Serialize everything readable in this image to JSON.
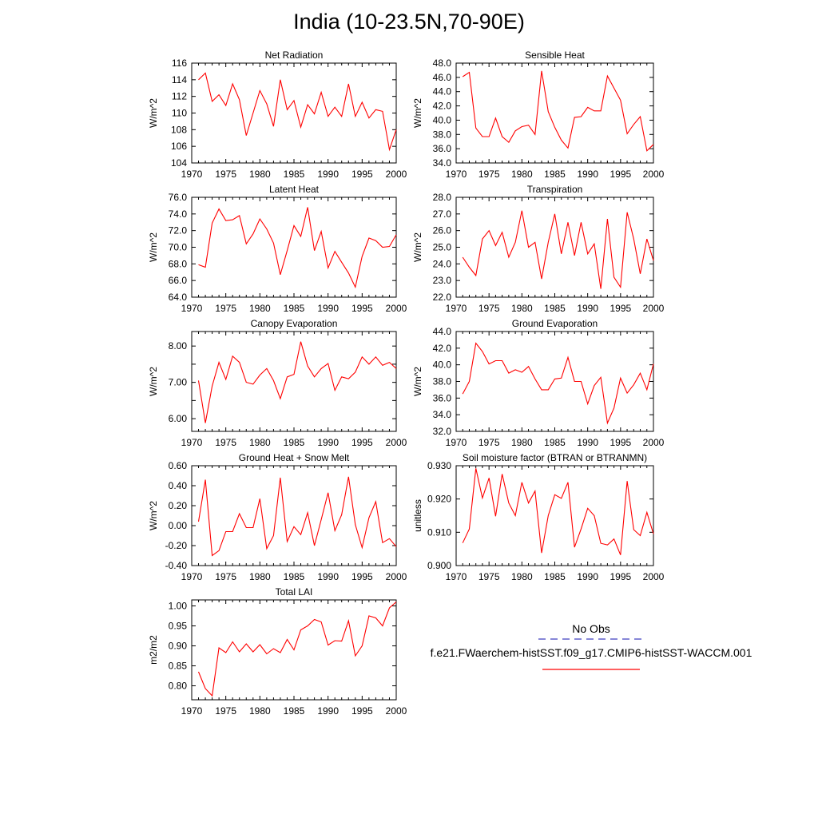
{
  "page": {
    "title": "India (10-23.5N,70-90E)"
  },
  "legend": {
    "obs_label": "No Obs",
    "obs_color": "#3f3fbf",
    "model_label": "f.e21.FWaerchem-histSST.f09_g17.CMIP6-histSST-WACCM.001",
    "model_color": "#ff0000"
  },
  "chart_data": [
    {
      "type": "line",
      "title": "Net Radiation",
      "ylabel": "W/m^2",
      "xlim": [
        1970,
        2000
      ],
      "ylim": [
        104,
        116
      ],
      "decimals": 0,
      "yticks": [
        104,
        106,
        108,
        110,
        112,
        114,
        116
      ],
      "xticks": [
        1970,
        1975,
        1980,
        1985,
        1990,
        1995,
        2000
      ],
      "series": [
        {
          "color": "#ff0000",
          "x": [
            1971,
            1972,
            1973,
            1974,
            1975,
            1976,
            1977,
            1978,
            1979,
            1980,
            1981,
            1982,
            1983,
            1984,
            1985,
            1986,
            1987,
            1988,
            1989,
            1990,
            1991,
            1992,
            1993,
            1994,
            1995,
            1996,
            1997,
            1998,
            1999,
            2000
          ],
          "values": [
            114.0,
            114.8,
            111.4,
            112.2,
            110.9,
            113.5,
            111.6,
            107.3,
            110.0,
            112.7,
            111.1,
            108.4,
            114.0,
            110.4,
            111.5,
            108.3,
            111.0,
            109.9,
            112.5,
            109.6,
            110.7,
            109.6,
            113.5,
            109.6,
            111.3,
            109.4,
            110.4,
            110.2,
            105.6,
            108.0
          ]
        }
      ]
    },
    {
      "type": "line",
      "title": "Sensible Heat",
      "ylabel": "W/m^2",
      "xlim": [
        1970,
        2000
      ],
      "ylim": [
        34,
        48
      ],
      "decimals": 1,
      "yticks": [
        34,
        36,
        38,
        40,
        42,
        44,
        46,
        48
      ],
      "xticks": [
        1970,
        1975,
        1980,
        1985,
        1990,
        1995,
        2000
      ],
      "series": [
        {
          "color": "#ff0000",
          "x": [
            1971,
            1972,
            1973,
            1974,
            1975,
            1976,
            1977,
            1978,
            1979,
            1980,
            1981,
            1982,
            1983,
            1984,
            1985,
            1986,
            1987,
            1988,
            1989,
            1990,
            1991,
            1992,
            1993,
            1994,
            1995,
            1996,
            1997,
            1998,
            1999,
            2000
          ],
          "values": [
            46.1,
            46.7,
            38.9,
            37.7,
            37.7,
            40.3,
            37.7,
            36.9,
            38.5,
            39.1,
            39.3,
            38.0,
            46.9,
            41.2,
            39.0,
            37.2,
            36.1,
            40.4,
            40.5,
            41.8,
            41.3,
            41.3,
            46.2,
            44.5,
            42.8,
            38.1,
            39.4,
            40.5,
            35.7,
            36.6
          ]
        }
      ]
    },
    {
      "type": "line",
      "title": "Latent Heat",
      "ylabel": "W/m^2",
      "xlim": [
        1970,
        2000
      ],
      "ylim": [
        64,
        76
      ],
      "decimals": 1,
      "yticks": [
        64,
        66,
        68,
        70,
        72,
        74,
        76
      ],
      "xticks": [
        1970,
        1975,
        1980,
        1985,
        1990,
        1995,
        2000
      ],
      "series": [
        {
          "color": "#ff0000",
          "x": [
            1971,
            1972,
            1973,
            1974,
            1975,
            1976,
            1977,
            1978,
            1979,
            1980,
            1981,
            1982,
            1983,
            1984,
            1985,
            1986,
            1987,
            1988,
            1989,
            1990,
            1991,
            1992,
            1993,
            1994,
            1995,
            1996,
            1997,
            1998,
            1999,
            2000
          ],
          "values": [
            67.9,
            67.6,
            72.9,
            74.6,
            73.2,
            73.3,
            73.8,
            70.4,
            71.6,
            73.4,
            72.2,
            70.5,
            66.7,
            69.6,
            72.6,
            71.3,
            74.8,
            69.6,
            71.9,
            67.5,
            69.5,
            68.2,
            66.9,
            65.2,
            68.9,
            71.1,
            70.8,
            70.0,
            70.1,
            71.5
          ]
        }
      ]
    },
    {
      "type": "line",
      "title": "Transpiration",
      "ylabel": "W/m^2",
      "xlim": [
        1970,
        2000
      ],
      "ylim": [
        22,
        28
      ],
      "decimals": 1,
      "yticks": [
        22,
        23,
        24,
        25,
        26,
        27,
        28
      ],
      "xticks": [
        1970,
        1975,
        1980,
        1985,
        1990,
        1995,
        2000
      ],
      "series": [
        {
          "color": "#ff0000",
          "x": [
            1971,
            1972,
            1973,
            1974,
            1975,
            1976,
            1977,
            1978,
            1979,
            1980,
            1981,
            1982,
            1983,
            1984,
            1985,
            1986,
            1987,
            1988,
            1989,
            1990,
            1991,
            1992,
            1993,
            1994,
            1995,
            1996,
            1997,
            1998,
            1999,
            2000
          ],
          "values": [
            24.4,
            23.8,
            23.3,
            25.5,
            26.0,
            25.1,
            25.9,
            24.4,
            25.3,
            27.2,
            25.0,
            25.3,
            23.1,
            25.3,
            27.0,
            24.6,
            26.5,
            24.5,
            26.5,
            24.6,
            25.2,
            22.5,
            26.7,
            23.2,
            22.6,
            27.1,
            25.5,
            23.4,
            25.5,
            24.2
          ]
        }
      ]
    },
    {
      "type": "line",
      "title": "Canopy Evaporation",
      "ylabel": "W/m^2",
      "xlim": [
        1970,
        2000
      ],
      "ylim": [
        5.65,
        8.4
      ],
      "decimals": 2,
      "yticks": [
        6.0,
        6.5,
        7.0,
        7.5,
        8.0
      ],
      "yticklabels": [
        "6.00",
        "",
        "7.00",
        "",
        "8.00"
      ],
      "xticks": [
        1970,
        1975,
        1980,
        1985,
        1990,
        1995,
        2000
      ],
      "series": [
        {
          "color": "#ff0000",
          "x": [
            1971,
            1972,
            1973,
            1974,
            1975,
            1976,
            1977,
            1978,
            1979,
            1980,
            1981,
            1982,
            1983,
            1984,
            1985,
            1986,
            1987,
            1988,
            1989,
            1990,
            1991,
            1992,
            1993,
            1994,
            1995,
            1996,
            1997,
            1998,
            1999,
            2000
          ],
          "values": [
            7.05,
            5.88,
            6.9,
            7.55,
            7.08,
            7.72,
            7.55,
            7.0,
            6.95,
            7.2,
            7.38,
            7.05,
            6.55,
            7.15,
            7.22,
            8.12,
            7.45,
            7.15,
            7.38,
            7.52,
            6.78,
            7.15,
            7.1,
            7.28,
            7.7,
            7.5,
            7.7,
            7.47,
            7.55,
            7.38
          ]
        }
      ]
    },
    {
      "type": "line",
      "title": "Ground Evaporation",
      "ylabel": "W/m^2",
      "xlim": [
        1970,
        2000
      ],
      "ylim": [
        32,
        44
      ],
      "decimals": 1,
      "yticks": [
        32,
        34,
        36,
        38,
        40,
        42,
        44
      ],
      "xticks": [
        1970,
        1975,
        1980,
        1985,
        1990,
        1995,
        2000
      ],
      "series": [
        {
          "color": "#ff0000",
          "x": [
            1971,
            1972,
            1973,
            1974,
            1975,
            1976,
            1977,
            1978,
            1979,
            1980,
            1981,
            1982,
            1983,
            1984,
            1985,
            1986,
            1987,
            1988,
            1989,
            1990,
            1991,
            1992,
            1993,
            1994,
            1995,
            1996,
            1997,
            1998,
            1999,
            2000
          ],
          "values": [
            36.5,
            38.0,
            42.6,
            41.6,
            40.1,
            40.5,
            40.5,
            39.0,
            39.4,
            39.1,
            39.8,
            38.3,
            37.0,
            37.0,
            38.3,
            38.4,
            40.9,
            38.0,
            38.0,
            35.3,
            37.5,
            38.5,
            33.0,
            34.8,
            38.4,
            36.6,
            37.6,
            39.0,
            37.0,
            40.1
          ]
        }
      ]
    },
    {
      "type": "line",
      "title": "Ground Heat + Snow Melt",
      "ylabel": "W/m^2",
      "xlim": [
        1970,
        2000
      ],
      "ylim": [
        -0.4,
        0.6
      ],
      "decimals": 2,
      "yticks": [
        -0.4,
        -0.2,
        0.0,
        0.2,
        0.4,
        0.6
      ],
      "xticks": [
        1970,
        1975,
        1980,
        1985,
        1990,
        1995,
        2000
      ],
      "series": [
        {
          "color": "#ff0000",
          "x": [
            1971,
            1972,
            1973,
            1974,
            1975,
            1976,
            1977,
            1978,
            1979,
            1980,
            1981,
            1982,
            1983,
            1984,
            1985,
            1986,
            1987,
            1988,
            1989,
            1990,
            1991,
            1992,
            1993,
            1994,
            1995,
            1996,
            1997,
            1998,
            1999,
            2000
          ],
          "values": [
            0.04,
            0.46,
            -0.3,
            -0.25,
            -0.06,
            -0.06,
            0.12,
            -0.02,
            -0.02,
            0.27,
            -0.23,
            -0.1,
            0.48,
            -0.16,
            -0.01,
            -0.09,
            0.13,
            -0.2,
            0.06,
            0.33,
            -0.05,
            0.11,
            0.49,
            0.01,
            -0.22,
            0.08,
            0.24,
            -0.17,
            -0.13,
            -0.21
          ]
        }
      ]
    },
    {
      "type": "line",
      "title": "Soil moisture factor (BTRAN or BTRANMN)",
      "ylabel": "unitless",
      "xlim": [
        1970,
        2000
      ],
      "ylim": [
        0.9,
        0.93
      ],
      "decimals": 3,
      "yticks": [
        0.9,
        0.91,
        0.92,
        0.93
      ],
      "xticks": [
        1970,
        1975,
        1980,
        1985,
        1990,
        1995,
        2000
      ],
      "series": [
        {
          "color": "#ff0000",
          "x": [
            1971,
            1972,
            1973,
            1974,
            1975,
            1976,
            1977,
            1978,
            1979,
            1980,
            1981,
            1982,
            1983,
            1984,
            1985,
            1986,
            1987,
            1988,
            1989,
            1990,
            1991,
            1992,
            1993,
            1994,
            1995,
            1996,
            1997,
            1998,
            1999,
            2000
          ],
          "values": [
            0.9068,
            0.911,
            0.9292,
            0.9203,
            0.9263,
            0.9148,
            0.9275,
            0.9188,
            0.915,
            0.925,
            0.9188,
            0.9224,
            0.9038,
            0.915,
            0.9213,
            0.9202,
            0.925,
            0.9055,
            0.911,
            0.9172,
            0.915,
            0.9067,
            0.9062,
            0.908,
            0.9032,
            0.9254,
            0.9108,
            0.909,
            0.916,
            0.9095
          ]
        }
      ]
    },
    {
      "type": "line",
      "title": "Total LAI",
      "ylabel": "m2/m2",
      "xlim": [
        1970,
        2000
      ],
      "ylim": [
        0.765,
        1.015
      ],
      "decimals": 2,
      "yticks": [
        0.8,
        0.85,
        0.9,
        0.95,
        1.0
      ],
      "xticks": [
        1970,
        1975,
        1980,
        1985,
        1990,
        1995,
        2000
      ],
      "series": [
        {
          "color": "#ff0000",
          "x": [
            1971,
            1972,
            1973,
            1974,
            1975,
            1976,
            1977,
            1978,
            1979,
            1980,
            1981,
            1982,
            1983,
            1984,
            1985,
            1986,
            1987,
            1988,
            1989,
            1990,
            1991,
            1992,
            1993,
            1994,
            1995,
            1996,
            1997,
            1998,
            1999,
            2000
          ],
          "values": [
            0.835,
            0.793,
            0.775,
            0.895,
            0.883,
            0.91,
            0.885,
            0.905,
            0.885,
            0.903,
            0.88,
            0.893,
            0.883,
            0.916,
            0.89,
            0.94,
            0.95,
            0.966,
            0.96,
            0.902,
            0.913,
            0.912,
            0.963,
            0.875,
            0.9,
            0.975,
            0.97,
            0.95,
            0.995,
            1.01
          ]
        }
      ]
    }
  ]
}
